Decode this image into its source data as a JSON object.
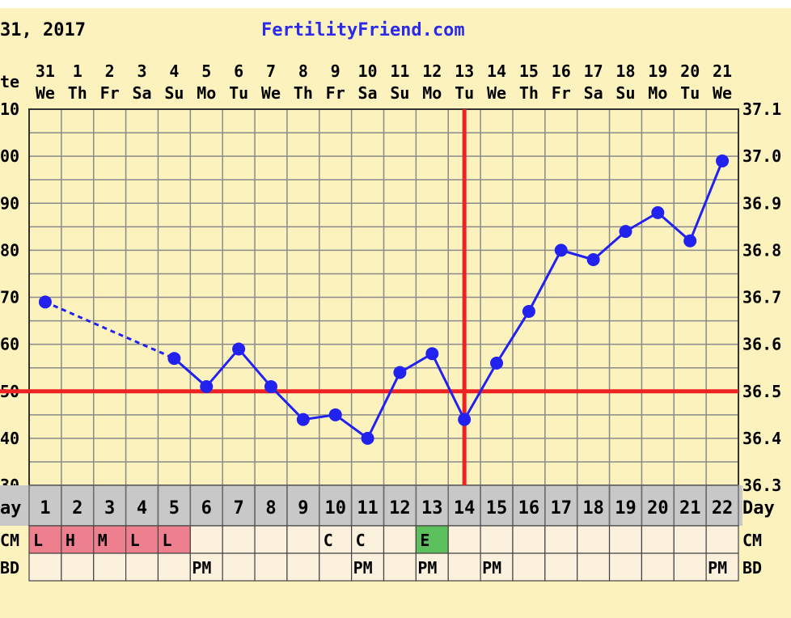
{
  "header": {
    "date_fragment": "31, 2017",
    "site": "FertilityFriend.com"
  },
  "labels": {
    "date_row": "te",
    "day_row": "ay",
    "day_row_right": "Day",
    "cm_row": "CM",
    "cm_row_right": "CM",
    "bd_row": "BD",
    "bd_row_right": "BD"
  },
  "colors": {
    "background": "#fbf2be",
    "grid": "#8a8a8a",
    "series": "#2222ee",
    "coverline": "#ee2222",
    "day_row_bg": "#c8c8c8",
    "row_bg": "#fbf1dc",
    "cm_sticky": "#ee7f8e",
    "cm_eggwhite": "#5cc05c",
    "header_link": "#2a2ae8"
  },
  "chart_data": {
    "type": "line",
    "x": [
      1,
      2,
      3,
      4,
      5,
      6,
      7,
      8,
      9,
      10,
      11,
      12,
      13,
      14,
      15,
      16,
      17,
      18,
      19,
      20,
      21,
      22
    ],
    "dates": [
      "31",
      "1",
      "2",
      "3",
      "4",
      "5",
      "6",
      "7",
      "8",
      "9",
      "10",
      "11",
      "12",
      "13",
      "14",
      "15",
      "16",
      "17",
      "18",
      "19",
      "20",
      "21"
    ],
    "weekdays": [
      "We",
      "Th",
      "Fr",
      "Sa",
      "Su",
      "Mo",
      "Tu",
      "We",
      "Th",
      "Fr",
      "Sa",
      "Su",
      "Mo",
      "Tu",
      "We",
      "Th",
      "Fr",
      "Sa",
      "Su",
      "Mo",
      "Tu",
      "We"
    ],
    "temps_c": [
      36.69,
      null,
      null,
      null,
      36.57,
      36.51,
      36.59,
      36.51,
      36.44,
      36.45,
      36.4,
      36.54,
      36.58,
      36.44,
      36.56,
      36.67,
      36.8,
      36.78,
      36.84,
      36.88,
      36.82,
      36.99
    ],
    "ylim": [
      36.3,
      37.1
    ],
    "yticks_left": [
      "10",
      "00",
      "90",
      "80",
      "70",
      "60",
      "50",
      "40",
      "30"
    ],
    "yticks_right": [
      "37.1",
      "37.0",
      "36.9",
      "36.8",
      "36.7",
      "36.6",
      "36.5",
      "36.4",
      "36.3"
    ],
    "coverline": 36.5,
    "ovulation_day": 14,
    "cervical_mucus": [
      "L",
      "H",
      "M",
      "L",
      "L",
      "",
      "",
      "",
      "",
      "C",
      "C",
      "",
      "E",
      "",
      "",
      "",
      "",
      "",
      "",
      "",
      "",
      ""
    ],
    "intercourse": [
      "",
      "",
      "",
      "",
      "",
      "PM",
      "",
      "",
      "",
      "",
      "PM",
      "",
      "PM",
      "",
      "PM",
      "",
      "",
      "",
      "",
      "",
      "",
      "PM"
    ],
    "grid": true
  }
}
